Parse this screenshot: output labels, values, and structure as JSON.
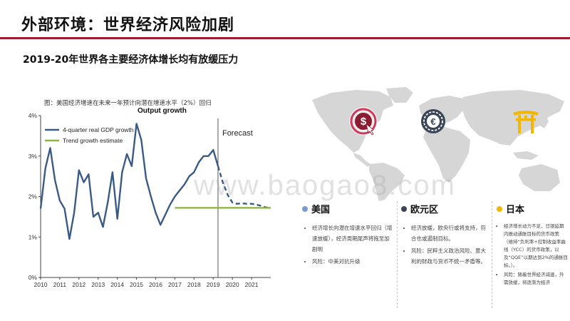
{
  "page": {
    "title": "外部环境：世界经济风险加剧",
    "subtitle": "2019-20年世界各主要经济体增长均有放缓压力",
    "caption": "图：美国经济增速在未来一年预计向潜在增速水平（2%）回归",
    "watermark": "www.baogao8.com"
  },
  "chart_data": {
    "type": "line",
    "title": "Output growth",
    "annotation": "Forecast",
    "xlabel": "",
    "ylabel": "",
    "x_ticks": [
      "2010",
      "2011",
      "2012",
      "2013",
      "2014",
      "2015",
      "2016",
      "2017",
      "2018",
      "2019",
      "2020",
      "2021"
    ],
    "y_ticks": [
      "0%",
      "1%",
      "2%",
      "3%",
      "4%"
    ],
    "xlim": [
      2010,
      2022
    ],
    "ylim": [
      0,
      4
    ],
    "forecast_start": 2019.25,
    "series": [
      {
        "name": "4-quarter real GDP growth",
        "color": "#3a5a88",
        "x": [
          2010.0,
          2010.25,
          2010.5,
          2010.75,
          2011.0,
          2011.25,
          2011.5,
          2011.75,
          2012.0,
          2012.25,
          2012.5,
          2012.75,
          2013.0,
          2013.25,
          2013.5,
          2013.75,
          2014.0,
          2014.25,
          2014.5,
          2014.75,
          2015.0,
          2015.25,
          2015.5,
          2015.75,
          2016.0,
          2016.25,
          2016.5,
          2016.75,
          2017.0,
          2017.25,
          2017.5,
          2017.75,
          2018.0,
          2018.25,
          2018.5,
          2018.75,
          2019.0,
          2019.25
        ],
        "values": [
          1.7,
          2.7,
          3.2,
          2.4,
          1.9,
          1.7,
          0.95,
          1.6,
          2.65,
          2.35,
          2.55,
          1.5,
          1.6,
          1.25,
          1.85,
          2.6,
          1.45,
          2.6,
          3.05,
          2.75,
          3.8,
          3.4,
          2.45,
          2.0,
          1.6,
          1.3,
          1.55,
          1.8,
          2.0,
          2.15,
          2.3,
          2.5,
          2.6,
          2.85,
          3.0,
          3.0,
          3.15,
          2.75
        ]
      },
      {
        "name": "4-quarter real GDP growth (forecast)",
        "color": "#3a5a88",
        "x": [
          2019.25,
          2019.5,
          2019.75,
          2020.0,
          2020.25,
          2020.5,
          2020.75,
          2021.0,
          2021.25,
          2021.5,
          2021.75,
          2022.0
        ],
        "values": [
          2.75,
          2.35,
          2.05,
          1.85,
          1.82,
          1.83,
          1.82,
          1.82,
          1.8,
          1.77,
          1.73,
          1.72
        ]
      },
      {
        "name": "Trend growth estimate",
        "color": "#8bb43c",
        "x": [
          2017.0,
          2022.0
        ],
        "values": [
          1.72,
          1.72
        ]
      }
    ],
    "legend": [
      {
        "name": "4-quarter real GDP growth",
        "color": "#3a5a88"
      },
      {
        "name": "Trend growth estimate",
        "color": "#8bb43c"
      }
    ],
    "legend_position": "top-left",
    "grid": false
  },
  "map": {
    "icons": [
      {
        "name": "dollar-icon",
        "color": "#8b1d32",
        "ring": "#cf3a5a"
      },
      {
        "name": "euro-icon",
        "color": "#3a4656",
        "ring": "#3a4656"
      },
      {
        "name": "torii-icon",
        "color": "#f2b705",
        "ring": "#f2b705"
      }
    ],
    "land_color": "#d6d6d6"
  },
  "regions": [
    {
      "name": "美国",
      "dot_color": "#7a9bd2",
      "bullets": [
        "经济增长向潜在增速水平回归（增速放缓），经济周期尾声将拖至加剧明",
        "风险：中美对抗升级"
      ]
    },
    {
      "name": "欧元区",
      "dot_color": "#3a4656",
      "bullets": [
        "经济放缓，欧央行或将支持，符合也或遏制目标。",
        "风险：民粹主义政治风险、意大利的财政与货币不统一矛盾等。"
      ]
    },
    {
      "name": "日本",
      "dot_color": "#f2b705",
      "bullets": [
        "经济增长动力不足，日银延期内推动通胀目标的货币政策（维持“负利率+控制收益率曲线（YCC）的货币政策，以及“QQE”以期达到2%的通胀目标。）。",
        "风险：随着世界经济减速，外需放缓，将逐渐为经济"
      ]
    }
  ]
}
